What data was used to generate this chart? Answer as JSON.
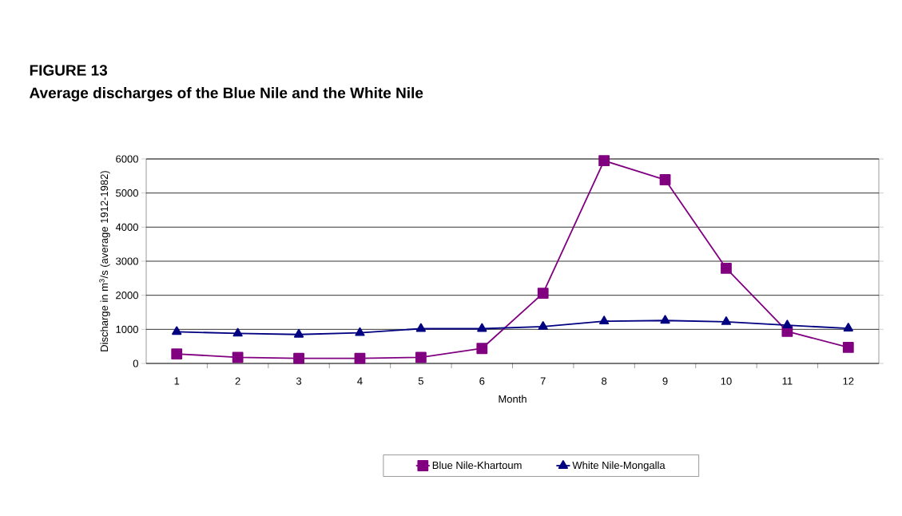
{
  "chart_data": {
    "type": "line",
    "title": "FIGURE 13",
    "subtitle": "Average discharges of the Blue Nile and the White Nile",
    "xlabel": "Month",
    "ylabel": "Discharge in m$^{3}$/s (average 1912-1982)",
    "categories": [
      "1",
      "2",
      "3",
      "4",
      "5",
      "6",
      "7",
      "8",
      "9",
      "10",
      "11",
      "12"
    ],
    "series": [
      {
        "name": "Blue Nile-Khartoum",
        "color": "#800080",
        "marker": "square",
        "values": [
          280,
          180,
          150,
          150,
          180,
          440,
          2060,
          5950,
          5390,
          2790,
          940,
          470
        ]
      },
      {
        "name": "White Nile-Mongalla",
        "color": "#000080",
        "marker": "triangle",
        "values": [
          930,
          880,
          850,
          900,
          1020,
          1020,
          1080,
          1240,
          1260,
          1220,
          1120,
          1030
        ]
      }
    ],
    "ylim": [
      0,
      6000
    ],
    "yticks": [
      0,
      1000,
      2000,
      3000,
      4000,
      5000,
      6000
    ],
    "grid": "y",
    "legend": "bottom",
    "line_style": "solid"
  }
}
